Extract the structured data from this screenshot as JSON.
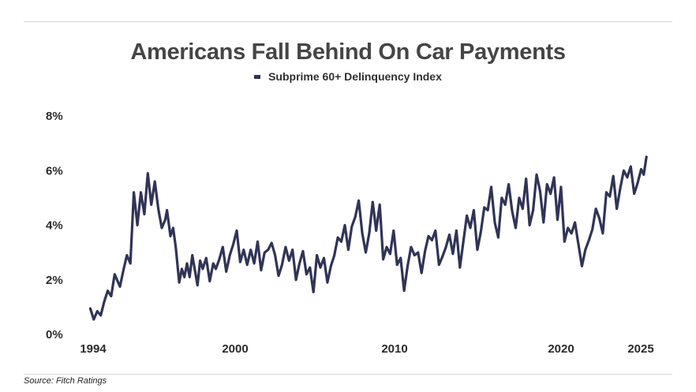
{
  "chart_data": {
    "type": "line",
    "title": "Americans Fall Behind On Car Payments",
    "xlabel": "",
    "ylabel": "",
    "xlim": [
      1993.9,
      2025.2
    ],
    "ylim": [
      0,
      8
    ],
    "x_ticks": [
      {
        "value": 1994,
        "label": "1994"
      },
      {
        "value": 2000,
        "label": "2000"
      },
      {
        "value": 2010,
        "label": "2010"
      },
      {
        "value": 2020,
        "label": "2020"
      },
      {
        "value": 2025,
        "label": "2025"
      }
    ],
    "y_ticks": [
      {
        "value": 0,
        "label": "0%"
      },
      {
        "value": 2,
        "label": "2%"
      },
      {
        "value": 4,
        "label": "4%"
      },
      {
        "value": 6,
        "label": "6%"
      },
      {
        "value": 8,
        "label": "8%"
      }
    ],
    "legend_position": "top-center",
    "series": [
      {
        "name": "Subprime 60+ Delinquency Index",
        "color": "#303456",
        "points": [
          [
            1994.1,
            0.95
          ],
          [
            1994.3,
            0.55
          ],
          [
            1994.5,
            0.85
          ],
          [
            1994.7,
            0.7
          ],
          [
            1994.9,
            1.2
          ],
          [
            1995.1,
            1.6
          ],
          [
            1995.3,
            1.4
          ],
          [
            1995.5,
            2.2
          ],
          [
            1995.8,
            1.75
          ],
          [
            1996.0,
            2.35
          ],
          [
            1996.2,
            2.9
          ],
          [
            1996.4,
            2.6
          ],
          [
            1996.6,
            5.2
          ],
          [
            1996.8,
            4.0
          ],
          [
            1997.0,
            5.2
          ],
          [
            1997.2,
            4.4
          ],
          [
            1997.4,
            5.9
          ],
          [
            1997.6,
            4.75
          ],
          [
            1997.8,
            5.6
          ],
          [
            1998.0,
            4.6
          ],
          [
            1998.2,
            3.9
          ],
          [
            1998.4,
            4.2
          ],
          [
            1998.5,
            4.55
          ],
          [
            1998.7,
            3.6
          ],
          [
            1998.85,
            3.9
          ],
          [
            1999.0,
            3.2
          ],
          [
            1999.2,
            1.9
          ],
          [
            1999.35,
            2.4
          ],
          [
            1999.5,
            2.1
          ],
          [
            1999.65,
            2.6
          ],
          [
            1999.8,
            2.1
          ],
          [
            1999.95,
            2.9
          ],
          [
            2000.1,
            2.35
          ],
          [
            2000.25,
            1.8
          ],
          [
            2000.4,
            2.7
          ],
          [
            2000.55,
            2.4
          ],
          [
            2000.75,
            2.8
          ],
          [
            2000.95,
            1.95
          ],
          [
            2001.15,
            2.6
          ],
          [
            2001.3,
            2.4
          ],
          [
            2001.5,
            2.75
          ],
          [
            2001.7,
            3.2
          ],
          [
            2001.9,
            2.3
          ],
          [
            2002.1,
            2.9
          ],
          [
            2002.3,
            3.3
          ],
          [
            2002.5,
            3.8
          ],
          [
            2002.7,
            2.65
          ],
          [
            2002.9,
            3.1
          ],
          [
            2003.1,
            2.55
          ],
          [
            2003.3,
            3.1
          ],
          [
            2003.5,
            2.6
          ],
          [
            2003.7,
            3.4
          ],
          [
            2003.9,
            2.35
          ],
          [
            2004.1,
            3.0
          ],
          [
            2004.3,
            3.1
          ],
          [
            2004.5,
            3.35
          ],
          [
            2004.7,
            2.9
          ],
          [
            2004.9,
            2.15
          ],
          [
            2005.1,
            2.55
          ],
          [
            2005.3,
            3.2
          ],
          [
            2005.5,
            2.7
          ],
          [
            2005.7,
            3.1
          ],
          [
            2005.9,
            2.0
          ],
          [
            2006.1,
            2.6
          ],
          [
            2006.3,
            3.05
          ],
          [
            2006.5,
            2.2
          ],
          [
            2006.7,
            2.45
          ],
          [
            2006.9,
            1.55
          ],
          [
            2007.1,
            2.9
          ],
          [
            2007.3,
            2.45
          ],
          [
            2007.5,
            2.8
          ],
          [
            2007.7,
            1.9
          ],
          [
            2007.9,
            2.5
          ],
          [
            2008.1,
            2.9
          ],
          [
            2008.3,
            3.55
          ],
          [
            2008.5,
            3.4
          ],
          [
            2008.7,
            4.0
          ],
          [
            2008.9,
            3.1
          ],
          [
            2009.1,
            3.95
          ],
          [
            2009.3,
            4.3
          ],
          [
            2009.5,
            4.9
          ],
          [
            2009.7,
            3.7
          ],
          [
            2009.9,
            3.0
          ],
          [
            2010.1,
            3.7
          ],
          [
            2010.3,
            4.85
          ],
          [
            2010.5,
            3.8
          ],
          [
            2010.7,
            4.75
          ],
          [
            2010.9,
            2.75
          ],
          [
            2011.1,
            3.2
          ],
          [
            2011.3,
            2.95
          ],
          [
            2011.5,
            3.8
          ],
          [
            2011.7,
            2.55
          ],
          [
            2011.9,
            2.8
          ],
          [
            2012.1,
            1.6
          ],
          [
            2012.3,
            2.5
          ],
          [
            2012.5,
            3.2
          ],
          [
            2012.7,
            2.9
          ],
          [
            2012.9,
            3.0
          ],
          [
            2013.1,
            2.25
          ],
          [
            2013.3,
            3.05
          ],
          [
            2013.5,
            3.6
          ],
          [
            2013.7,
            3.45
          ],
          [
            2013.9,
            3.8
          ],
          [
            2014.1,
            2.55
          ],
          [
            2014.3,
            2.85
          ],
          [
            2014.5,
            3.2
          ],
          [
            2014.7,
            3.65
          ],
          [
            2014.9,
            2.95
          ],
          [
            2015.1,
            3.8
          ],
          [
            2015.3,
            2.45
          ],
          [
            2015.5,
            3.4
          ],
          [
            2015.7,
            4.35
          ],
          [
            2015.9,
            3.9
          ],
          [
            2016.1,
            4.55
          ],
          [
            2016.3,
            3.1
          ],
          [
            2016.5,
            3.75
          ],
          [
            2016.7,
            4.65
          ],
          [
            2016.9,
            4.55
          ],
          [
            2017.1,
            5.4
          ],
          [
            2017.3,
            4.1
          ],
          [
            2017.5,
            3.55
          ],
          [
            2017.7,
            5.0
          ],
          [
            2017.9,
            4.75
          ],
          [
            2018.1,
            5.5
          ],
          [
            2018.3,
            4.5
          ],
          [
            2018.5,
            3.9
          ],
          [
            2018.7,
            5.0
          ],
          [
            2018.9,
            4.6
          ],
          [
            2019.1,
            5.7
          ],
          [
            2019.3,
            4.0
          ],
          [
            2019.5,
            4.55
          ],
          [
            2019.7,
            5.85
          ],
          [
            2019.9,
            5.25
          ],
          [
            2020.1,
            4.1
          ],
          [
            2020.3,
            5.5
          ],
          [
            2020.5,
            5.15
          ],
          [
            2020.7,
            5.75
          ],
          [
            2020.9,
            4.2
          ],
          [
            2021.1,
            5.4
          ],
          [
            2021.3,
            3.4
          ],
          [
            2021.5,
            3.9
          ],
          [
            2021.7,
            3.7
          ],
          [
            2021.9,
            4.1
          ],
          [
            2022.1,
            3.3
          ],
          [
            2022.3,
            2.5
          ],
          [
            2022.5,
            3.1
          ],
          [
            2022.7,
            3.45
          ],
          [
            2022.9,
            3.85
          ],
          [
            2023.1,
            4.6
          ],
          [
            2023.3,
            4.25
          ],
          [
            2023.5,
            3.7
          ],
          [
            2023.7,
            5.2
          ],
          [
            2023.9,
            5.05
          ],
          [
            2024.1,
            5.8
          ],
          [
            2024.3,
            4.6
          ],
          [
            2024.5,
            5.35
          ],
          [
            2024.7,
            6.0
          ],
          [
            2024.9,
            5.75
          ],
          [
            2025.1,
            6.15
          ],
          [
            2025.3,
            5.15
          ],
          [
            2025.5,
            5.55
          ],
          [
            2025.7,
            6.05
          ],
          [
            2025.85,
            5.85
          ],
          [
            2026.0,
            6.5
          ]
        ]
      }
    ]
  },
  "footer": {
    "source": "Source: Fitch Ratings"
  }
}
